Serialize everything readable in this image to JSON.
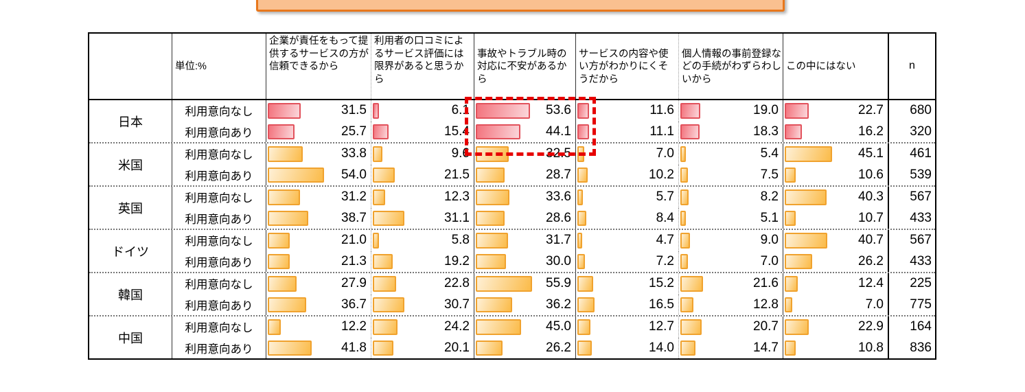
{
  "banner": {
    "fill": "#FAC090",
    "border": "#E8771C"
  },
  "highlight_box": {
    "color": "#E60000",
    "target": "日本 × 事故やトラブル時の対応に不安があるから"
  },
  "colors": {
    "bar_orange_border": "#F0A22E",
    "bar_orange_fill_from": "#FEF0D6",
    "bar_orange_fill_to": "#FBBB49",
    "bar_pink_border": "#E2525C",
    "bar_pink_fill_from": "#F3737D",
    "bar_pink_fill_to": "#FBD6DA",
    "highlight_dash": "#E60000"
  },
  "chart_data": {
    "type": "table",
    "unit_label": "単位:%",
    "n_header": "n",
    "value_axis_max": 100,
    "columns": [
      "企業が責任をもって提供するサービスの方が信頼できるから",
      "利用者の口コミによるサービス評価には限界があると思うから",
      "事故やトラブル時の対応に不安があるから",
      "サービスの内容や使い方がわかりにくそうだから",
      "個人情報の事前登録などの手続がわずらわしいから",
      "この中にはない"
    ],
    "row_groups": [
      {
        "country": "日本",
        "bar_color": "pink",
        "rows": [
          {
            "label": "利用意向なし",
            "values": [
              31.5,
              6.1,
              53.6,
              11.6,
              19.0,
              22.7
            ],
            "n": 680
          },
          {
            "label": "利用意向あり",
            "values": [
              25.7,
              15.4,
              44.1,
              11.1,
              18.3,
              16.2
            ],
            "n": 320
          }
        ]
      },
      {
        "country": "米国",
        "bar_color": "orange",
        "rows": [
          {
            "label": "利用意向なし",
            "values": [
              33.8,
              9.6,
              32.5,
              7.0,
              5.4,
              45.1
            ],
            "n": 461
          },
          {
            "label": "利用意向あり",
            "values": [
              54.0,
              21.5,
              28.7,
              10.2,
              7.5,
              10.6
            ],
            "n": 539
          }
        ]
      },
      {
        "country": "英国",
        "bar_color": "orange",
        "rows": [
          {
            "label": "利用意向なし",
            "values": [
              31.2,
              12.3,
              33.6,
              5.7,
              8.2,
              40.3
            ],
            "n": 567
          },
          {
            "label": "利用意向あり",
            "values": [
              38.7,
              31.1,
              28.6,
              8.4,
              5.1,
              10.7
            ],
            "n": 433
          }
        ]
      },
      {
        "country": "ドイツ",
        "bar_color": "orange",
        "rows": [
          {
            "label": "利用意向なし",
            "values": [
              21.0,
              5.8,
              31.7,
              4.7,
              9.0,
              40.7
            ],
            "n": 567
          },
          {
            "label": "利用意向あり",
            "values": [
              21.3,
              19.2,
              30.0,
              7.2,
              7.0,
              26.2
            ],
            "n": 433
          }
        ]
      },
      {
        "country": "韓国",
        "bar_color": "orange",
        "rows": [
          {
            "label": "利用意向なし",
            "values": [
              27.9,
              22.8,
              55.9,
              15.2,
              21.6,
              12.4
            ],
            "n": 225
          },
          {
            "label": "利用意向あり",
            "values": [
              36.7,
              30.7,
              36.2,
              16.5,
              12.8,
              7.0
            ],
            "n": 775
          }
        ]
      },
      {
        "country": "中国",
        "bar_color": "orange",
        "rows": [
          {
            "label": "利用意向なし",
            "values": [
              12.2,
              24.2,
              45.0,
              12.7,
              20.7,
              22.9
            ],
            "n": 164
          },
          {
            "label": "利用意向あり",
            "values": [
              41.8,
              20.1,
              26.2,
              14.0,
              14.7,
              10.8
            ],
            "n": 836
          }
        ]
      }
    ]
  }
}
